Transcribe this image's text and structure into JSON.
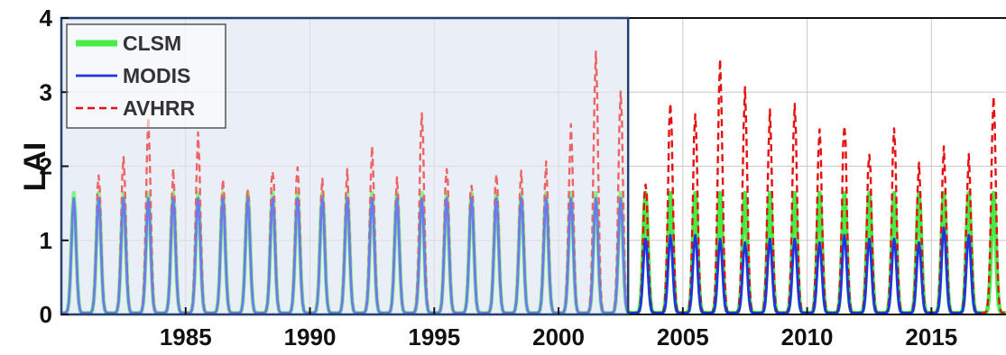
{
  "chart_data": {
    "type": "line",
    "title": "",
    "xlabel": "",
    "ylabel": "LAI",
    "xlim": [
      1980,
      2018
    ],
    "ylim": [
      0,
      4
    ],
    "x_ticks": [
      1985,
      1990,
      1995,
      2000,
      2005,
      2010,
      2015
    ],
    "x_tick_labels": [
      "1985",
      "1990",
      "1995",
      "2000",
      "2005",
      "2010",
      "2015"
    ],
    "y_ticks": [
      0,
      1,
      2,
      3,
      4
    ],
    "y_tick_labels": [
      "0",
      "1",
      "2",
      "3",
      "4"
    ],
    "grid": true,
    "legend_position": "top-left",
    "shaded_period": [
      1980,
      2002.8
    ],
    "shaded_color": "#dfe6f3",
    "series": [
      {
        "name": "CLSM",
        "color": "#44ee44",
        "style": "solid",
        "start_year": 1980.5,
        "annual_peaks": [
          1.62,
          1.62,
          1.62,
          1.62,
          1.62,
          1.62,
          1.62,
          1.62,
          1.62,
          1.62,
          1.62,
          1.62,
          1.62,
          1.62,
          1.62,
          1.62,
          1.62,
          1.62,
          1.62,
          1.62,
          1.62,
          1.62,
          1.62,
          1.62,
          1.62,
          1.62,
          1.62,
          1.62,
          1.62,
          1.62,
          1.62,
          1.62,
          1.62,
          1.62,
          1.62,
          1.62,
          1.62,
          1.62
        ]
      },
      {
        "name": "MODIS",
        "color": "#1e34e0",
        "style": "solid",
        "start_year": 1980.5,
        "annual_peaks": [
          1.55,
          1.55,
          1.55,
          1.55,
          1.55,
          1.55,
          1.55,
          1.55,
          1.55,
          1.55,
          1.55,
          1.55,
          1.55,
          1.55,
          1.55,
          1.55,
          1.55,
          1.55,
          1.55,
          1.55,
          1.55,
          1.55,
          1.55,
          1.0,
          1.05,
          1.05,
          1.0,
          0.95,
          1.0,
          1.0,
          0.95,
          1.05,
          1.0,
          1.0,
          0.95,
          1.15,
          1.05
        ]
      },
      {
        "name": "AVHRR",
        "color": "#e51010",
        "style": "dashed",
        "start_year": 1981.5,
        "annual_peaks": [
          1.8,
          2.0,
          2.5,
          1.8,
          2.3,
          1.7,
          1.6,
          1.9,
          1.9,
          1.7,
          1.8,
          2.1,
          1.7,
          2.6,
          1.9,
          1.7,
          1.8,
          1.8,
          1.9,
          2.4,
          3.4,
          2.9,
          1.7,
          2.8,
          2.6,
          3.3,
          2.9,
          2.6,
          2.7,
          2.4,
          2.5,
          2.1,
          2.4,
          1.9,
          2.1,
          2.0,
          2.8
        ]
      }
    ]
  }
}
